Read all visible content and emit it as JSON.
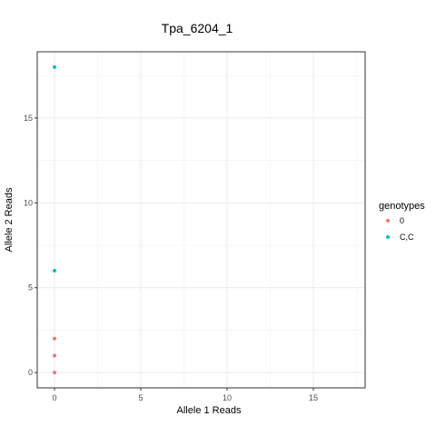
{
  "chart_data": {
    "type": "scatter",
    "title": "Tpa_6204_1",
    "xlabel": "Allele 1 Reads",
    "ylabel": "Allele 2 Reads",
    "xlim": [
      -1,
      18
    ],
    "ylim": [
      -0.9,
      18.9
    ],
    "x_ticks": [
      0,
      5,
      10,
      15
    ],
    "y_ticks": [
      0,
      5,
      10,
      15
    ],
    "grid": true,
    "legend": {
      "title": "genotypes",
      "placement": "right"
    },
    "series": [
      {
        "name": "0",
        "color": "#F8766D",
        "points": [
          {
            "x": 0,
            "y": 0
          },
          {
            "x": 0,
            "y": 1
          },
          {
            "x": 0,
            "y": 2
          }
        ]
      },
      {
        "name": "C,C",
        "color": "#00BFC4",
        "points": [
          {
            "x": 0,
            "y": 6
          },
          {
            "x": 0,
            "y": 18
          }
        ]
      }
    ]
  }
}
